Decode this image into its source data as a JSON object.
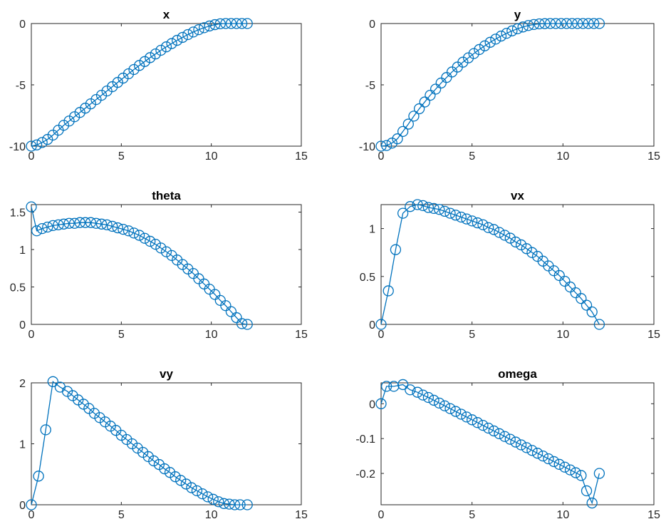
{
  "figure": {
    "line_color": "#0072BD"
  },
  "chart_data": [
    {
      "type": "line",
      "title": "x",
      "xlim": [
        0,
        15
      ],
      "ylim": [
        -10,
        0
      ],
      "xticks": [
        0,
        5,
        10,
        15
      ],
      "yticks": [
        -10,
        -5,
        0
      ],
      "grid": false,
      "marker": "circle",
      "series": [
        {
          "x": [
            0,
            0.3,
            0.6,
            0.9,
            1.2,
            1.5,
            1.8,
            2.1,
            2.4,
            2.7,
            3.0,
            3.3,
            3.6,
            3.9,
            4.2,
            4.5,
            4.8,
            5.1,
            5.4,
            5.7,
            6.0,
            6.3,
            6.6,
            6.9,
            7.2,
            7.5,
            7.8,
            8.1,
            8.4,
            8.7,
            9.0,
            9.3,
            9.6,
            9.9,
            10.2,
            10.5,
            10.8,
            11.1,
            11.4,
            11.7,
            12.0
          ],
          "y": [
            -10,
            -9.9,
            -9.7,
            -9.45,
            -9.1,
            -8.7,
            -8.3,
            -7.95,
            -7.6,
            -7.25,
            -6.9,
            -6.55,
            -6.2,
            -5.85,
            -5.5,
            -5.15,
            -4.8,
            -4.45,
            -4.1,
            -3.75,
            -3.42,
            -3.1,
            -2.78,
            -2.48,
            -2.18,
            -1.9,
            -1.63,
            -1.37,
            -1.13,
            -0.9,
            -0.69,
            -0.5,
            -0.34,
            -0.2,
            -0.09,
            -0.02,
            0.0,
            0.0,
            0.0,
            0.0,
            0.0
          ]
        }
      ]
    },
    {
      "type": "line",
      "title": "y",
      "xlim": [
        0,
        15
      ],
      "ylim": [
        -10,
        0
      ],
      "xticks": [
        0,
        5,
        10,
        15
      ],
      "yticks": [
        -10,
        -5,
        0
      ],
      "grid": false,
      "marker": "circle",
      "series": [
        {
          "x": [
            0,
            0.3,
            0.6,
            0.9,
            1.2,
            1.5,
            1.8,
            2.1,
            2.4,
            2.7,
            3.0,
            3.3,
            3.6,
            3.9,
            4.2,
            4.5,
            4.8,
            5.1,
            5.4,
            5.7,
            6.0,
            6.3,
            6.6,
            6.9,
            7.2,
            7.5,
            7.8,
            8.1,
            8.4,
            8.7,
            9.0,
            9.3,
            9.6,
            9.9,
            10.2,
            10.5,
            10.8,
            11.1,
            11.4,
            11.7,
            12.0
          ],
          "y": [
            -10,
            -9.95,
            -9.75,
            -9.4,
            -8.8,
            -8.2,
            -7.55,
            -6.95,
            -6.4,
            -5.85,
            -5.35,
            -4.85,
            -4.4,
            -3.95,
            -3.55,
            -3.15,
            -2.8,
            -2.45,
            -2.12,
            -1.82,
            -1.53,
            -1.27,
            -1.02,
            -0.8,
            -0.6,
            -0.43,
            -0.28,
            -0.16,
            -0.08,
            -0.03,
            -0.01,
            0.0,
            0.0,
            0.0,
            0.0,
            0.0,
            0.0,
            0.0,
            0.0,
            0.0,
            0.0
          ]
        }
      ]
    },
    {
      "type": "line",
      "title": "theta",
      "xlim": [
        0,
        15
      ],
      "ylim": [
        0,
        1.6
      ],
      "xticks": [
        0,
        5,
        10,
        15
      ],
      "yticks": [
        0,
        0.5,
        1,
        1.5
      ],
      "grid": false,
      "marker": "circle",
      "series": [
        {
          "x": [
            0,
            0.3,
            0.6,
            0.9,
            1.2,
            1.5,
            1.8,
            2.1,
            2.4,
            2.7,
            3.0,
            3.3,
            3.6,
            3.9,
            4.2,
            4.5,
            4.8,
            5.1,
            5.4,
            5.7,
            6.0,
            6.3,
            6.6,
            6.9,
            7.2,
            7.5,
            7.8,
            8.1,
            8.4,
            8.7,
            9.0,
            9.3,
            9.6,
            9.9,
            10.2,
            10.5,
            10.8,
            11.1,
            11.4,
            11.7,
            12.0
          ],
          "y": [
            1.57,
            1.25,
            1.28,
            1.3,
            1.32,
            1.33,
            1.34,
            1.35,
            1.35,
            1.36,
            1.36,
            1.36,
            1.35,
            1.34,
            1.33,
            1.31,
            1.29,
            1.27,
            1.25,
            1.22,
            1.19,
            1.15,
            1.11,
            1.07,
            1.02,
            0.97,
            0.92,
            0.86,
            0.8,
            0.74,
            0.68,
            0.61,
            0.54,
            0.47,
            0.4,
            0.32,
            0.25,
            0.17,
            0.09,
            0.01,
            0.0
          ]
        }
      ]
    },
    {
      "type": "line",
      "title": "vx",
      "xlim": [
        0,
        15
      ],
      "ylim": [
        0,
        1.25
      ],
      "xticks": [
        0,
        5,
        10,
        15
      ],
      "yticks": [
        0,
        0.5,
        1
      ],
      "grid": false,
      "marker": "circle",
      "series": [
        {
          "x": [
            0,
            0.4,
            0.8,
            1.2,
            1.6,
            2.0,
            2.3,
            2.6,
            2.9,
            3.2,
            3.5,
            3.8,
            4.1,
            4.4,
            4.7,
            5.0,
            5.3,
            5.6,
            5.9,
            6.2,
            6.5,
            6.8,
            7.1,
            7.4,
            7.7,
            8.0,
            8.3,
            8.6,
            8.9,
            9.2,
            9.5,
            9.8,
            10.1,
            10.4,
            10.7,
            11.0,
            11.3,
            11.6,
            12.0
          ],
          "y": [
            0,
            0.35,
            0.78,
            1.16,
            1.23,
            1.25,
            1.24,
            1.22,
            1.21,
            1.2,
            1.18,
            1.16,
            1.14,
            1.12,
            1.1,
            1.08,
            1.06,
            1.04,
            1.01,
            0.99,
            0.96,
            0.93,
            0.9,
            0.86,
            0.83,
            0.79,
            0.75,
            0.71,
            0.66,
            0.61,
            0.56,
            0.51,
            0.45,
            0.39,
            0.33,
            0.27,
            0.2,
            0.13,
            0.0
          ]
        }
      ]
    },
    {
      "type": "line",
      "title": "vy",
      "xlim": [
        0,
        15
      ],
      "ylim": [
        0,
        2
      ],
      "xticks": [
        0,
        5,
        10,
        15
      ],
      "yticks": [
        0,
        1,
        2
      ],
      "grid": false,
      "marker": "circle",
      "series": [
        {
          "x": [
            0,
            0.4,
            0.8,
            1.2,
            1.6,
            2.0,
            2.3,
            2.6,
            2.9,
            3.2,
            3.5,
            3.8,
            4.1,
            4.4,
            4.7,
            5.0,
            5.3,
            5.6,
            5.9,
            6.2,
            6.5,
            6.8,
            7.1,
            7.4,
            7.7,
            8.0,
            8.3,
            8.6,
            8.9,
            9.2,
            9.5,
            9.8,
            10.1,
            10.4,
            10.7,
            11.0,
            11.3,
            11.6,
            12.0
          ],
          "y": [
            0,
            0.47,
            1.23,
            2.02,
            1.93,
            1.86,
            1.79,
            1.72,
            1.65,
            1.58,
            1.5,
            1.43,
            1.36,
            1.29,
            1.22,
            1.14,
            1.07,
            1.0,
            0.93,
            0.86,
            0.79,
            0.72,
            0.66,
            0.59,
            0.53,
            0.46,
            0.4,
            0.34,
            0.28,
            0.23,
            0.18,
            0.13,
            0.09,
            0.05,
            0.02,
            0.01,
            0.0,
            0.0,
            0.0
          ]
        }
      ]
    },
    {
      "type": "line",
      "title": "omega",
      "xlim": [
        0,
        15
      ],
      "ylim": [
        -0.29,
        0.06
      ],
      "xticks": [
        0,
        5,
        10,
        15
      ],
      "yticks": [
        -0.2,
        -0.1,
        0
      ],
      "grid": false,
      "marker": "circle",
      "series": [
        {
          "x": [
            0,
            0.3,
            0.7,
            1.2,
            1.6,
            2.0,
            2.3,
            2.6,
            2.9,
            3.2,
            3.5,
            3.8,
            4.1,
            4.4,
            4.7,
            5.0,
            5.3,
            5.6,
            5.9,
            6.2,
            6.5,
            6.8,
            7.1,
            7.4,
            7.7,
            8.0,
            8.3,
            8.6,
            8.9,
            9.2,
            9.5,
            9.8,
            10.1,
            10.4,
            10.7,
            11.0,
            11.3,
            11.6,
            12.0
          ],
          "y": [
            0.0,
            0.05,
            0.05,
            0.055,
            0.04,
            0.033,
            0.025,
            0.018,
            0.01,
            0.002,
            -0.006,
            -0.014,
            -0.022,
            -0.03,
            -0.038,
            -0.046,
            -0.054,
            -0.062,
            -0.07,
            -0.078,
            -0.086,
            -0.094,
            -0.102,
            -0.11,
            -0.118,
            -0.126,
            -0.134,
            -0.142,
            -0.15,
            -0.158,
            -0.166,
            -0.174,
            -0.182,
            -0.19,
            -0.198,
            -0.206,
            -0.25,
            -0.285,
            -0.2
          ]
        }
      ]
    }
  ]
}
